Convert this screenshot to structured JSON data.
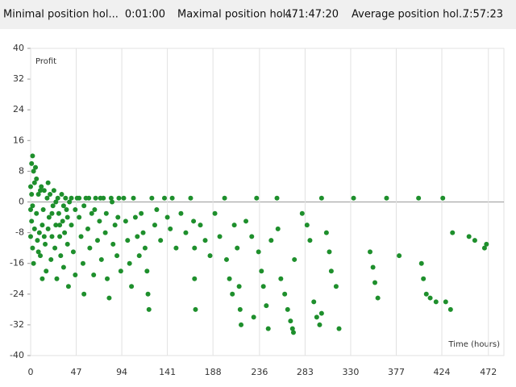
{
  "header": {
    "items": [
      {
        "label": "Minimal position hol...",
        "value": "0:01:00"
      },
      {
        "label": "Maximal position hol...",
        "value": "471:47:20"
      },
      {
        "label": "Average position hol...",
        "value": "7:57:23"
      }
    ]
  },
  "chart_data": {
    "type": "scatter",
    "y_label": "Profit",
    "x_label": "Time (hours)",
    "color": "#1e8f2c",
    "xlim": [
      0,
      488
    ],
    "ylim": [
      -40,
      40
    ],
    "xticks": [
      0,
      47,
      94,
      141,
      188,
      236,
      283,
      330,
      377,
      424,
      472
    ],
    "yticks": [
      -40,
      -32,
      -24,
      -16,
      -8,
      0,
      8,
      16,
      24,
      32,
      40
    ],
    "grid": true,
    "x": [
      1,
      2,
      3,
      1,
      2,
      3,
      4,
      5,
      6,
      7,
      8,
      9,
      10,
      11,
      12,
      13,
      14,
      15,
      16,
      17,
      18,
      19,
      20,
      21,
      22,
      23,
      24,
      25,
      26,
      27,
      28,
      29,
      30,
      31,
      32,
      33,
      34,
      35,
      36,
      37,
      38,
      39,
      40,
      42,
      44,
      46,
      48,
      50,
      52,
      54,
      55,
      57,
      59,
      61,
      63,
      65,
      67,
      69,
      71,
      73,
      75,
      77,
      79,
      81,
      83,
      85,
      87,
      89,
      91,
      93,
      0,
      0,
      0,
      1,
      2,
      4,
      6,
      8,
      10,
      12,
      14,
      18,
      22,
      26,
      30,
      34,
      38,
      42,
      46,
      50,
      55,
      60,
      66,
      72,
      78,
      84,
      90,
      96,
      98,
      100,
      102,
      104,
      106,
      108,
      110,
      112,
      114,
      116,
      118,
      120,
      121,
      122,
      125,
      128,
      130,
      134,
      138,
      141,
      144,
      146,
      150,
      155,
      160,
      165,
      168,
      169,
      169,
      170,
      175,
      180,
      185,
      190,
      195,
      200,
      202,
      205,
      208,
      210,
      213,
      215,
      216,
      217,
      222,
      228,
      233,
      235,
      238,
      240,
      243,
      245,
      248,
      254,
      258,
      262,
      265,
      268,
      270,
      271,
      272,
      280,
      285,
      288,
      292,
      295,
      298,
      300,
      305,
      308,
      310,
      315,
      318,
      333,
      350,
      353,
      355,
      358,
      367,
      380,
      400,
      403,
      405,
      408,
      412,
      418,
      425,
      428,
      433,
      435,
      452,
      458,
      468,
      470,
      255,
      300,
      230
    ],
    "values": [
      10,
      12,
      8,
      -5,
      -12,
      -16,
      5,
      9,
      -3,
      -10,
      2,
      -8,
      -14,
      4,
      -6,
      -2,
      3,
      -11,
      -18,
      1,
      -7,
      -4,
      2,
      -15,
      -9,
      -1,
      3,
      -12,
      -6,
      -20,
      1,
      -3,
      -9,
      -14,
      2,
      -5,
      -17,
      -8,
      1,
      -2,
      -11,
      -22,
      0,
      -6,
      -13,
      -19,
      1,
      -4,
      -9,
      -16,
      -24,
      1,
      -7,
      -12,
      -3,
      -19,
      1,
      -10,
      -5,
      -15,
      1,
      -8,
      -20,
      -25,
      1,
      -11,
      -6,
      -14,
      1,
      -18,
      -2,
      4,
      -9,
      2,
      -1,
      -7,
      6,
      -13,
      3,
      -20,
      -9,
      5,
      -3,
      0,
      -6,
      -1,
      -4,
      1,
      -2,
      1,
      -1,
      1,
      -2,
      1,
      -3,
      0,
      -4,
      1,
      -5,
      -10,
      -16,
      -22,
      1,
      -4,
      -9,
      -14,
      -3,
      -8,
      -12,
      -18,
      -24,
      -28,
      1,
      -6,
      -2,
      -10,
      1,
      -4,
      -7,
      1,
      -12,
      -3,
      -8,
      1,
      -5,
      -12,
      -20,
      -28,
      -6,
      -10,
      -14,
      -3,
      -9,
      1,
      -15,
      -20,
      -24,
      -6,
      -12,
      -22,
      -28,
      -32,
      -5,
      -9,
      1,
      -13,
      -18,
      -22,
      -27,
      -33,
      -10,
      1,
      -20,
      -24,
      -28,
      -31,
      -33,
      -34,
      -15,
      -3,
      -6,
      -10,
      -26,
      -30,
      -32,
      1,
      -8,
      -13,
      -18,
      -22,
      -33,
      1,
      -13,
      -17,
      -21,
      -25,
      1,
      -14,
      1,
      -16,
      -20,
      -24,
      -25,
      -26,
      1,
      -26,
      -28,
      -8,
      -9,
      -10,
      -12,
      -11,
      -7,
      -29,
      -30
    ]
  }
}
